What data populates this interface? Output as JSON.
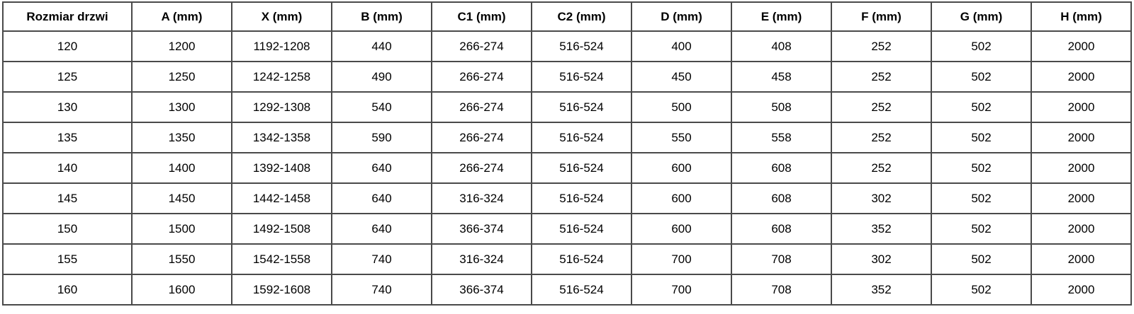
{
  "chart_data": {
    "type": "table",
    "columns": [
      "Rozmiar drzwi",
      "A (mm)",
      "X (mm)",
      "B (mm)",
      "C1 (mm)",
      "C2 (mm)",
      "D (mm)",
      "E (mm)",
      "F (mm)",
      "G (mm)",
      "H (mm)"
    ],
    "rows": [
      [
        "120",
        "1200",
        "1192-1208",
        "440",
        "266-274",
        "516-524",
        "400",
        "408",
        "252",
        "502",
        "2000"
      ],
      [
        "125",
        "1250",
        "1242-1258",
        "490",
        "266-274",
        "516-524",
        "450",
        "458",
        "252",
        "502",
        "2000"
      ],
      [
        "130",
        "1300",
        "1292-1308",
        "540",
        "266-274",
        "516-524",
        "500",
        "508",
        "252",
        "502",
        "2000"
      ],
      [
        "135",
        "1350",
        "1342-1358",
        "590",
        "266-274",
        "516-524",
        "550",
        "558",
        "252",
        "502",
        "2000"
      ],
      [
        "140",
        "1400",
        "1392-1408",
        "640",
        "266-274",
        "516-524",
        "600",
        "608",
        "252",
        "502",
        "2000"
      ],
      [
        "145",
        "1450",
        "1442-1458",
        "640",
        "316-324",
        "516-524",
        "600",
        "608",
        "302",
        "502",
        "2000"
      ],
      [
        "150",
        "1500",
        "1492-1508",
        "640",
        "366-374",
        "516-524",
        "600",
        "608",
        "352",
        "502",
        "2000"
      ],
      [
        "155",
        "1550",
        "1542-1558",
        "740",
        "316-324",
        "516-524",
        "700",
        "708",
        "302",
        "502",
        "2000"
      ],
      [
        "160",
        "1600",
        "1592-1608",
        "740",
        "366-374",
        "516-524",
        "700",
        "708",
        "352",
        "502",
        "2000"
      ]
    ],
    "title": "",
    "layout_hints": {
      "grid": "on",
      "header_row": true,
      "alignment": "center"
    }
  },
  "colors": {
    "border": "#4a4a4a",
    "text": "#000000",
    "background": "#ffffff"
  }
}
